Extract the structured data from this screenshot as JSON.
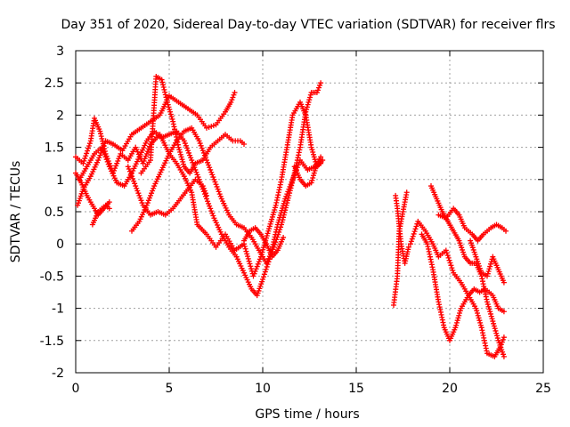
{
  "chart_data": {
    "type": "scatter",
    "title": "Day 351 of 2020, Sidereal Day-to-day VTEC variation (SDTVAR) for receiver flrs",
    "xlabel": "GPS time / hours",
    "ylabel": "SDTVAR / TECUs",
    "xlim": [
      0,
      25
    ],
    "ylim": [
      -2,
      3
    ],
    "xticks": [
      0,
      5,
      10,
      15,
      20,
      25
    ],
    "yticks": [
      -2,
      -1.5,
      -1,
      -0.5,
      0,
      0.5,
      1,
      1.5,
      2,
      2.5,
      3
    ],
    "xtick_labels": [
      "0",
      "5",
      "10",
      "15",
      "20",
      "25"
    ],
    "ytick_labels": [
      "-2",
      "-1.5",
      "-1",
      "-0.5",
      "0",
      "0.5",
      "1",
      "1.5",
      "2",
      "2.5",
      "3"
    ],
    "grid": true,
    "marker": "+",
    "series": [
      {
        "color": "#ff0000",
        "tracks": [
          [
            [
              0.0,
              1.35
            ],
            [
              0.4,
              1.25
            ],
            [
              0.8,
              1.6
            ],
            [
              1.0,
              1.95
            ],
            [
              1.3,
              1.75
            ],
            [
              1.6,
              1.4
            ],
            [
              2.0,
              1.1
            ],
            [
              2.4,
              1.4
            ],
            [
              2.8,
              1.3
            ],
            [
              3.2,
              1.5
            ],
            [
              3.6,
              1.25
            ],
            [
              4.0,
              1.55
            ],
            [
              4.5,
              1.7
            ],
            [
              5.0,
              1.4
            ],
            [
              5.4,
              1.25
            ],
            [
              5.8,
              1.05
            ],
            [
              6.2,
              0.8
            ],
            [
              6.5,
              0.3
            ],
            [
              7.0,
              0.15
            ],
            [
              7.5,
              -0.05
            ],
            [
              8.0,
              0.15
            ],
            [
              8.5,
              -0.1
            ],
            [
              9.0,
              0.0
            ],
            [
              9.5,
              -0.5
            ],
            [
              9.9,
              -0.2
            ],
            [
              10.3,
              0.2
            ],
            [
              10.7,
              0.6
            ],
            [
              11.0,
              1.0
            ],
            [
              11.3,
              1.5
            ],
            [
              11.6,
              2.0
            ],
            [
              12.0,
              2.2
            ],
            [
              12.3,
              2.0
            ],
            [
              12.6,
              1.5
            ],
            [
              12.9,
              1.2
            ],
            [
              13.2,
              1.3
            ]
          ],
          [
            [
              0.0,
              1.1
            ],
            [
              0.3,
              0.95
            ],
            [
              0.6,
              0.75
            ],
            [
              1.0,
              0.55
            ],
            [
              1.2,
              0.45
            ],
            [
              1.5,
              0.55
            ],
            [
              1.8,
              0.65
            ]
          ],
          [
            [
              0.1,
              0.6
            ],
            [
              0.4,
              0.85
            ],
            [
              0.8,
              1.05
            ],
            [
              1.2,
              1.3
            ],
            [
              1.6,
              1.6
            ],
            [
              2.0,
              1.55
            ],
            [
              2.5,
              1.45
            ],
            [
              3.0,
              1.7
            ],
            [
              3.5,
              1.8
            ],
            [
              4.0,
              1.9
            ],
            [
              4.5,
              2.0
            ],
            [
              5.0,
              2.3
            ],
            [
              5.5,
              2.2
            ],
            [
              6.0,
              2.1
            ],
            [
              6.5,
              2.0
            ],
            [
              7.0,
              1.8
            ],
            [
              7.5,
              1.85
            ],
            [
              8.0,
              2.05
            ],
            [
              8.3,
              2.2
            ],
            [
              8.5,
              2.35
            ]
          ],
          [
            [
              0.2,
              1.0
            ],
            [
              0.6,
              1.2
            ],
            [
              1.0,
              1.4
            ],
            [
              1.4,
              1.5
            ],
            [
              1.8,
              1.2
            ],
            [
              2.2,
              0.95
            ],
            [
              2.6,
              0.9
            ],
            [
              3.0,
              1.1
            ],
            [
              3.4,
              1.35
            ],
            [
              3.8,
              1.6
            ],
            [
              4.2,
              1.75
            ],
            [
              4.6,
              1.65
            ],
            [
              5.0,
              1.7
            ],
            [
              5.4,
              1.75
            ],
            [
              5.8,
              1.6
            ],
            [
              6.2,
              1.3
            ],
            [
              6.6,
              1.0
            ],
            [
              7.0,
              0.7
            ],
            [
              7.4,
              0.4
            ],
            [
              7.8,
              0.15
            ],
            [
              8.2,
              -0.05
            ],
            [
              8.6,
              -0.2
            ],
            [
              9.0,
              -0.45
            ],
            [
              9.4,
              -0.7
            ],
            [
              9.7,
              -0.8
            ],
            [
              10.0,
              -0.55
            ],
            [
              10.4,
              -0.2
            ],
            [
              10.8,
              0.3
            ],
            [
              11.2,
              0.7
            ],
            [
              11.6,
              1.0
            ],
            [
              12.0,
              1.3
            ],
            [
              12.4,
              1.15
            ],
            [
              12.8,
              1.2
            ],
            [
              13.1,
              1.25
            ]
          ],
          [
            [
              0.9,
              0.3
            ],
            [
              1.2,
              0.5
            ],
            [
              1.6,
              0.6
            ],
            [
              1.8,
              0.55
            ]
          ],
          [
            [
              3.0,
              0.2
            ],
            [
              3.4,
              0.35
            ],
            [
              3.8,
              0.6
            ],
            [
              4.2,
              0.9
            ],
            [
              4.6,
              1.15
            ],
            [
              5.0,
              1.4
            ],
            [
              5.4,
              1.6
            ],
            [
              5.8,
              1.75
            ],
            [
              6.2,
              1.8
            ],
            [
              6.6,
              1.6
            ],
            [
              7.0,
              1.3
            ],
            [
              7.4,
              1.0
            ],
            [
              7.8,
              0.7
            ],
            [
              8.2,
              0.45
            ],
            [
              8.6,
              0.3
            ],
            [
              9.0,
              0.25
            ],
            [
              9.4,
              0.1
            ],
            [
              9.8,
              -0.1
            ],
            [
              10.2,
              -0.3
            ],
            [
              10.6,
              -0.05
            ],
            [
              11.0,
              0.3
            ],
            [
              11.4,
              0.75
            ],
            [
              11.7,
              1.1
            ],
            [
              12.0,
              1.5
            ],
            [
              12.3,
              2.05
            ],
            [
              12.6,
              2.35
            ],
            [
              12.9,
              2.35
            ],
            [
              13.1,
              2.5
            ]
          ],
          [
            [
              3.5,
              1.1
            ],
            [
              4.0,
              1.3
            ],
            [
              4.3,
              2.6
            ],
            [
              4.6,
              2.55
            ],
            [
              4.9,
              2.2
            ],
            [
              5.2,
              1.9
            ],
            [
              5.5,
              1.5
            ],
            [
              5.8,
              1.2
            ],
            [
              6.1,
              1.1
            ],
            [
              6.4,
              1.25
            ],
            [
              6.8,
              1.3
            ],
            [
              7.2,
              1.5
            ],
            [
              7.6,
              1.6
            ],
            [
              8.0,
              1.7
            ],
            [
              8.4,
              1.6
            ],
            [
              8.8,
              1.6
            ],
            [
              9.0,
              1.55
            ]
          ],
          [
            [
              2.8,
              1.2
            ],
            [
              3.2,
              0.9
            ],
            [
              3.6,
              0.6
            ],
            [
              4.0,
              0.45
            ],
            [
              4.4,
              0.5
            ],
            [
              4.8,
              0.45
            ],
            [
              5.2,
              0.55
            ],
            [
              5.6,
              0.7
            ],
            [
              6.0,
              0.85
            ],
            [
              6.4,
              1.0
            ],
            [
              6.8,
              0.9
            ],
            [
              7.0,
              0.75
            ]
          ],
          [
            [
              9.0,
              0.05
            ],
            [
              9.3,
              0.2
            ],
            [
              9.6,
              0.25
            ],
            [
              9.9,
              0.15
            ],
            [
              10.2,
              0.0
            ],
            [
              10.5,
              -0.2
            ],
            [
              10.8,
              -0.1
            ],
            [
              11.1,
              0.1
            ]
          ],
          [
            [
              11.7,
              1.2
            ],
            [
              12.0,
              1.0
            ],
            [
              12.3,
              0.9
            ],
            [
              12.6,
              0.95
            ],
            [
              12.9,
              1.25
            ],
            [
              13.1,
              1.35
            ]
          ],
          [
            [
              17.0,
              -0.95
            ],
            [
              17.2,
              -0.5
            ],
            [
              17.3,
              0.2
            ],
            [
              17.5,
              0.5
            ],
            [
              17.7,
              0.8
            ]
          ],
          [
            [
              17.1,
              0.75
            ],
            [
              17.2,
              0.55
            ],
            [
              17.4,
              0.0
            ],
            [
              17.6,
              -0.3
            ],
            [
              17.8,
              -0.05
            ]
          ],
          [
            [
              17.9,
              0.0
            ],
            [
              18.3,
              0.35
            ],
            [
              18.7,
              0.2
            ],
            [
              19.1,
              0.0
            ],
            [
              19.4,
              -0.2
            ],
            [
              19.8,
              -0.1
            ],
            [
              20.2,
              -0.45
            ],
            [
              20.6,
              -0.6
            ],
            [
              21.0,
              -0.8
            ],
            [
              21.4,
              -1.0
            ],
            [
              21.7,
              -1.3
            ],
            [
              22.0,
              -1.7
            ],
            [
              22.4,
              -1.75
            ],
            [
              22.7,
              -1.6
            ],
            [
              22.9,
              -1.45
            ]
          ],
          [
            [
              18.5,
              0.15
            ],
            [
              18.8,
              0.0
            ],
            [
              19.1,
              -0.4
            ],
            [
              19.4,
              -0.9
            ],
            [
              19.7,
              -1.3
            ],
            [
              20.0,
              -1.5
            ],
            [
              20.3,
              -1.3
            ],
            [
              20.6,
              -1.0
            ],
            [
              21.0,
              -0.8
            ],
            [
              21.3,
              -0.7
            ],
            [
              21.6,
              -0.75
            ],
            [
              21.9,
              -0.7
            ],
            [
              22.3,
              -0.8
            ],
            [
              22.6,
              -1.0
            ],
            [
              22.9,
              -1.05
            ]
          ],
          [
            [
              19.0,
              0.9
            ],
            [
              19.3,
              0.7
            ],
            [
              19.6,
              0.5
            ],
            [
              19.9,
              0.35
            ],
            [
              20.2,
              0.2
            ],
            [
              20.5,
              0.05
            ],
            [
              20.8,
              -0.2
            ],
            [
              21.1,
              -0.3
            ],
            [
              21.4,
              -0.3
            ],
            [
              21.7,
              -0.5
            ],
            [
              22.0,
              -0.9
            ],
            [
              22.3,
              -1.2
            ],
            [
              22.6,
              -1.5
            ],
            [
              22.9,
              -1.75
            ]
          ],
          [
            [
              19.4,
              0.45
            ],
            [
              19.8,
              0.4
            ],
            [
              20.2,
              0.55
            ],
            [
              20.5,
              0.45
            ],
            [
              20.8,
              0.25
            ],
            [
              21.2,
              0.15
            ],
            [
              21.5,
              0.05
            ],
            [
              21.8,
              0.15
            ],
            [
              22.2,
              0.25
            ],
            [
              22.5,
              0.3
            ],
            [
              22.8,
              0.25
            ],
            [
              23.0,
              0.2
            ]
          ],
          [
            [
              21.1,
              0.05
            ],
            [
              21.4,
              -0.2
            ],
            [
              21.7,
              -0.45
            ],
            [
              22.0,
              -0.5
            ],
            [
              22.3,
              -0.2
            ],
            [
              22.6,
              -0.4
            ],
            [
              22.9,
              -0.6
            ]
          ]
        ]
      }
    ]
  }
}
